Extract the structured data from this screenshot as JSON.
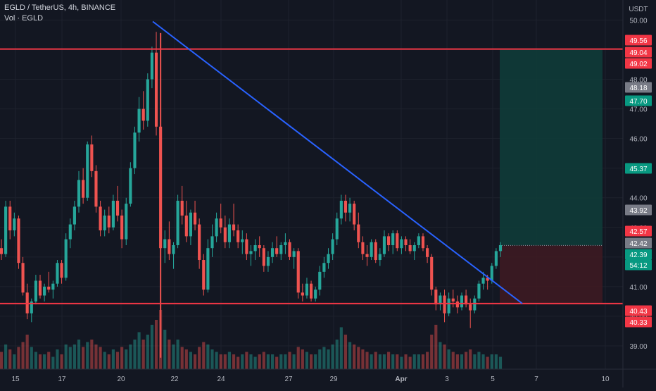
{
  "legend": {
    "symbol_line": "EGLD / TetherUS, 4h, BINANCE",
    "volume_line": "Vol · EGLD"
  },
  "colors": {
    "background": "#131722",
    "grid": "#1e222d",
    "up": "#26a69a",
    "down": "#ef5350",
    "trendline": "#2962ff",
    "hline": "#f23645",
    "profit_zone": "#0f3d3a",
    "loss_zone": "#3d1a22",
    "axis_text": "#b2b5be"
  },
  "chart_data": {
    "type": "candlestick",
    "symbol": "EGLD / TetherUS",
    "timeframe": "4h",
    "exchange": "BINANCE",
    "currency": "USDT",
    "ylim": [
      38.5,
      50.2
    ],
    "y_ticks": [
      "50.00",
      "49.00",
      "48.00",
      "47.00",
      "46.00",
      "45.00",
      "44.00",
      "43.00",
      "42.00",
      "41.00",
      "40.00",
      "39.00"
    ],
    "x_ticks": [
      "15",
      "17",
      "20",
      "22",
      "24",
      "27",
      "29",
      "Apr",
      "3",
      "5",
      "7",
      "10"
    ],
    "horizontal_lines": [
      49.02,
      40.43
    ],
    "trendline": {
      "from": {
        "x": "Mar 21",
        "y": 49.95
      },
      "to": {
        "x": "Apr 5",
        "y": 40.43
      }
    },
    "position": {
      "entry": 42.39,
      "target": 49.02,
      "stop": 40.43
    },
    "price_labels": [
      {
        "value": "49.56",
        "kind": "red"
      },
      {
        "value": "49.04",
        "kind": "red"
      },
      {
        "value": "49.02",
        "kind": "red"
      },
      {
        "value": "48.18",
        "kind": "gray"
      },
      {
        "value": "47.70",
        "kind": "green"
      },
      {
        "value": "45.37",
        "kind": "green"
      },
      {
        "value": "43.92",
        "kind": "gray"
      },
      {
        "value": "42.57",
        "kind": "red"
      },
      {
        "value": "42.42",
        "kind": "gray"
      },
      {
        "value": "42.39",
        "kind": "green"
      },
      {
        "value": "54:12",
        "kind": "green"
      },
      {
        "value": "40.43",
        "kind": "red"
      },
      {
        "value": "40.33",
        "kind": "red"
      }
    ],
    "candles_ohlc": [
      [
        42.3,
        42.6,
        41.9,
        42.1
      ],
      [
        42.1,
        43.9,
        42.0,
        43.7
      ],
      [
        43.7,
        43.9,
        42.6,
        42.9
      ],
      [
        42.9,
        43.5,
        42.7,
        43.3
      ],
      [
        43.3,
        43.4,
        41.6,
        41.8
      ],
      [
        41.8,
        42.0,
        40.7,
        40.8
      ],
      [
        40.8,
        41.1,
        39.9,
        40.1
      ],
      [
        40.1,
        40.6,
        39.8,
        40.5
      ],
      [
        40.5,
        41.4,
        40.4,
        41.2
      ],
      [
        41.2,
        41.4,
        40.6,
        40.7
      ],
      [
        40.7,
        41.1,
        40.5,
        41.0
      ],
      [
        41.0,
        41.5,
        40.8,
        40.9
      ],
      [
        40.9,
        41.2,
        40.6,
        41.1
      ],
      [
        41.1,
        41.9,
        41.0,
        41.8
      ],
      [
        41.8,
        41.9,
        41.1,
        41.3
      ],
      [
        41.3,
        42.8,
        41.2,
        42.6
      ],
      [
        42.6,
        43.3,
        42.3,
        43.1
      ],
      [
        43.1,
        43.9,
        42.9,
        43.7
      ],
      [
        43.7,
        44.9,
        43.5,
        44.6
      ],
      [
        44.6,
        45.0,
        43.8,
        44.0
      ],
      [
        44.0,
        45.9,
        43.9,
        45.8
      ],
      [
        45.8,
        46.1,
        44.7,
        44.9
      ],
      [
        44.9,
        45.1,
        43.5,
        43.7
      ],
      [
        43.7,
        43.9,
        42.7,
        42.9
      ],
      [
        42.9,
        43.6,
        42.7,
        43.4
      ],
      [
        43.4,
        43.7,
        42.8,
        43.0
      ],
      [
        43.0,
        44.1,
        42.9,
        43.9
      ],
      [
        43.9,
        44.4,
        43.2,
        43.4
      ],
      [
        43.4,
        43.6,
        42.3,
        42.6
      ],
      [
        42.6,
        44.0,
        42.4,
        43.8
      ],
      [
        43.8,
        45.2,
        43.7,
        45.0
      ],
      [
        45.0,
        46.4,
        44.8,
        46.2
      ],
      [
        46.2,
        47.4,
        45.9,
        47.0
      ],
      [
        47.0,
        47.6,
        46.3,
        46.6
      ],
      [
        46.6,
        48.2,
        46.4,
        48.0
      ],
      [
        48.0,
        49.1,
        47.7,
        48.9
      ],
      [
        48.9,
        49.6,
        46.1,
        46.4
      ],
      [
        46.4,
        46.6,
        41.2,
        42.3
      ],
      [
        42.3,
        42.9,
        41.8,
        42.6
      ],
      [
        42.6,
        43.2,
        41.9,
        42.1
      ],
      [
        42.1,
        42.5,
        41.6,
        42.4
      ],
      [
        42.4,
        44.1,
        42.3,
        43.9
      ],
      [
        43.9,
        44.4,
        43.1,
        43.4
      ],
      [
        43.4,
        43.9,
        42.5,
        42.7
      ],
      [
        42.7,
        43.6,
        42.4,
        43.5
      ],
      [
        43.5,
        43.9,
        42.9,
        43.1
      ],
      [
        43.1,
        43.3,
        41.6,
        41.9
      ],
      [
        41.9,
        42.1,
        40.7,
        40.9
      ],
      [
        40.9,
        42.6,
        40.8,
        42.3
      ],
      [
        42.3,
        43.1,
        42.0,
        42.7
      ],
      [
        42.7,
        43.5,
        42.5,
        43.3
      ],
      [
        43.3,
        43.8,
        42.8,
        43.0
      ],
      [
        43.0,
        43.4,
        42.3,
        42.5
      ],
      [
        42.5,
        43.3,
        42.3,
        43.1
      ],
      [
        43.1,
        43.8,
        42.7,
        42.9
      ],
      [
        42.9,
        43.1,
        42.3,
        42.5
      ],
      [
        42.5,
        42.9,
        42.1,
        42.6
      ],
      [
        42.6,
        42.8,
        41.9,
        42.1
      ],
      [
        42.1,
        42.4,
        41.7,
        42.2
      ],
      [
        42.2,
        42.6,
        41.9,
        42.4
      ],
      [
        42.4,
        42.7,
        42.0,
        42.3
      ],
      [
        42.3,
        42.4,
        41.5,
        41.7
      ],
      [
        41.7,
        42.2,
        41.5,
        42.0
      ],
      [
        42.0,
        42.5,
        41.8,
        42.3
      ],
      [
        42.3,
        42.7,
        42.0,
        42.1
      ],
      [
        42.1,
        42.5,
        41.9,
        42.4
      ],
      [
        42.4,
        42.8,
        42.1,
        42.5
      ],
      [
        42.5,
        42.6,
        41.9,
        42.0
      ],
      [
        42.0,
        42.3,
        41.6,
        42.2
      ],
      [
        42.2,
        42.3,
        40.6,
        40.8
      ],
      [
        40.8,
        41.1,
        40.5,
        40.7
      ],
      [
        40.7,
        41.3,
        40.6,
        41.1
      ],
      [
        41.1,
        41.2,
        40.5,
        40.6
      ],
      [
        40.6,
        41.0,
        40.5,
        40.9
      ],
      [
        40.9,
        41.7,
        40.7,
        41.5
      ],
      [
        41.5,
        42.0,
        41.3,
        41.8
      ],
      [
        41.8,
        42.3,
        41.6,
        42.1
      ],
      [
        42.1,
        42.8,
        41.9,
        42.6
      ],
      [
        42.6,
        43.5,
        42.4,
        43.3
      ],
      [
        43.3,
        44.1,
        43.1,
        43.9
      ],
      [
        43.9,
        44.1,
        43.2,
        43.5
      ],
      [
        43.5,
        44.0,
        43.2,
        43.8
      ],
      [
        43.8,
        43.9,
        42.9,
        43.1
      ],
      [
        43.1,
        43.5,
        42.3,
        42.5
      ],
      [
        42.5,
        42.7,
        41.9,
        42.1
      ],
      [
        42.1,
        42.4,
        41.7,
        42.0
      ],
      [
        42.0,
        42.6,
        41.9,
        42.5
      ],
      [
        42.5,
        42.6,
        41.8,
        41.9
      ],
      [
        41.9,
        42.3,
        41.7,
        42.1
      ],
      [
        42.1,
        42.9,
        42.0,
        42.7
      ],
      [
        42.7,
        42.8,
        42.2,
        42.4
      ],
      [
        42.4,
        42.9,
        42.1,
        42.8
      ],
      [
        42.8,
        42.9,
        42.2,
        42.3
      ],
      [
        42.3,
        42.7,
        42.1,
        42.6
      ],
      [
        42.6,
        42.7,
        42.2,
        42.4
      ],
      [
        42.4,
        42.6,
        42.1,
        42.2
      ],
      [
        42.2,
        42.5,
        41.9,
        42.4
      ],
      [
        42.4,
        42.8,
        42.3,
        42.7
      ],
      [
        42.7,
        42.8,
        42.2,
        42.3
      ],
      [
        42.3,
        42.4,
        41.8,
        42.0
      ],
      [
        42.0,
        42.1,
        40.7,
        40.9
      ],
      [
        40.9,
        41.0,
        40.2,
        40.4
      ],
      [
        40.4,
        40.8,
        40.2,
        40.7
      ],
      [
        40.7,
        40.9,
        39.8,
        40.1
      ],
      [
        40.1,
        40.8,
        40.0,
        40.6
      ],
      [
        40.6,
        40.9,
        40.3,
        40.5
      ],
      [
        40.5,
        40.7,
        40.1,
        40.3
      ],
      [
        40.3,
        40.8,
        40.2,
        40.7
      ],
      [
        40.7,
        40.9,
        40.3,
        40.4
      ],
      [
        40.4,
        40.6,
        39.6,
        40.2
      ],
      [
        40.2,
        40.7,
        40.1,
        40.6
      ],
      [
        40.6,
        41.2,
        40.5,
        41.1
      ],
      [
        41.1,
        41.5,
        40.9,
        41.3
      ],
      [
        41.3,
        41.4,
        40.9,
        41.2
      ],
      [
        41.2,
        41.8,
        41.1,
        41.7
      ],
      [
        41.7,
        42.3,
        41.6,
        42.2
      ],
      [
        42.2,
        42.5,
        42.0,
        42.4
      ]
    ],
    "volumes": [
      0.35,
      0.5,
      0.4,
      0.3,
      0.45,
      0.55,
      0.7,
      0.45,
      0.35,
      0.3,
      0.3,
      0.35,
      0.25,
      0.4,
      0.3,
      0.5,
      0.45,
      0.5,
      0.6,
      0.45,
      0.55,
      0.6,
      0.5,
      0.45,
      0.35,
      0.3,
      0.4,
      0.35,
      0.45,
      0.4,
      0.5,
      0.6,
      0.75,
      0.6,
      0.7,
      0.9,
      1.0,
      1.2,
      0.8,
      0.6,
      0.5,
      0.6,
      0.45,
      0.4,
      0.35,
      0.3,
      0.45,
      0.55,
      0.5,
      0.4,
      0.35,
      0.3,
      0.3,
      0.35,
      0.3,
      0.25,
      0.3,
      0.35,
      0.3,
      0.25,
      0.3,
      0.35,
      0.3,
      0.3,
      0.25,
      0.3,
      0.3,
      0.35,
      0.3,
      0.45,
      0.4,
      0.35,
      0.3,
      0.3,
      0.4,
      0.45,
      0.4,
      0.5,
      0.6,
      0.85,
      0.7,
      0.55,
      0.5,
      0.45,
      0.4,
      0.35,
      0.3,
      0.35,
      0.3,
      0.3,
      0.35,
      0.3,
      0.3,
      0.25,
      0.3,
      0.25,
      0.3,
      0.3,
      0.3,
      0.35,
      0.7,
      0.9,
      0.55,
      0.5,
      0.4,
      0.35,
      0.3,
      0.3,
      0.35,
      0.4,
      0.3,
      0.35,
      0.3,
      0.25,
      0.3,
      0.3,
      0.25
    ]
  }
}
